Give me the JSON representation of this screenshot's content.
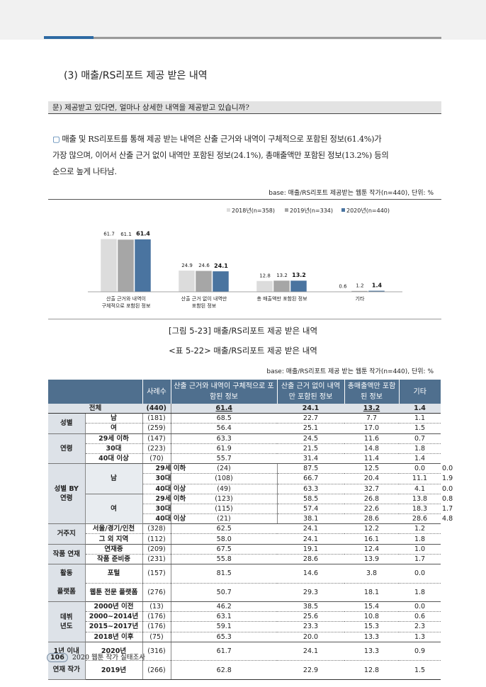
{
  "section_title": "(3) 매출/RS리포트 제공 받은 내역",
  "question": "문) 제공받고 있다면, 얼마나 상세한 내역을 제공받고 있습니까?",
  "summary_bullet": "▢",
  "summary_lines": [
    "매출 및 RS리포트를 통해 제공 받는 내역은 산출 근거와 내역이 구체적으로 포함된 정보(61.4%)가",
    "가장 많으며, 이어서 산출 근거 없이 내역만 포함된 정보(24.1%), 총매출액만 포함된 정보(13.2%) 등의",
    "순으로 높게 나타남."
  ],
  "chart_base": "base: 매출/RS리포트 제공받는 웹툰 작가(n=440), 단위: %",
  "chart_data": {
    "type": "bar",
    "categories": [
      "산출 근거와 내역이\n구체적으로 포함된 정보",
      "산출 근거 없이 내역만\n포함된 정보",
      "총 매출액만 포함된 정보",
      "기타"
    ],
    "series": [
      {
        "name": "2018년(n=358)",
        "values": [
          61.7,
          24.9,
          12.8,
          0.6
        ],
        "color": "#dcdcdc"
      },
      {
        "name": "2019년(n=334)",
        "values": [
          61.1,
          24.6,
          13.2,
          1.2
        ],
        "color": "#a6a6a6"
      },
      {
        "name": "2020년(n=440)",
        "values": [
          61.4,
          24.1,
          13.2,
          1.4
        ],
        "color": "#4a74a0"
      }
    ],
    "ylim": [
      0,
      70
    ],
    "legend": "top-right"
  },
  "figure_caption": "[그림 5-23] 매출/RS리포트 제공 받은 내역",
  "table_caption": "<표 5-22> 매출/RS리포트 제공 받은 내역",
  "table_base": "base: 매출/RS리포트 제공 받는 웹툰 작가(n=440), 단위: %",
  "table": {
    "headers": [
      "사례수",
      "산출 근거와 내역이 구체적으로 포함된 정보",
      "산출 근거 없이 내역만 포함된 정보",
      "총매출액만 포함된 정보",
      "기타"
    ],
    "total": {
      "label": "전체",
      "n": "(440)",
      "v": [
        "61.4",
        "24.1",
        "13.2",
        "1.4"
      ]
    },
    "groups": {
      "gender": "성별",
      "age": "연령",
      "gender_age_1": "성별 BY",
      "gender_age_2": "연령",
      "male": "남",
      "female": "여",
      "residence": "거주지",
      "serial": "작품 연재",
      "platform_1": "활동",
      "platform_2": "플랫폼",
      "debut_1": "데뷔",
      "debut_2": "년도",
      "within1_1": "1년 이내",
      "within1_2": "연재 작가"
    },
    "rows": [
      {
        "label": "남",
        "n": "(181)",
        "v": [
          "68.5",
          "22.7",
          "7.7",
          "1.1"
        ]
      },
      {
        "label": "여",
        "n": "(259)",
        "v": [
          "56.4",
          "25.1",
          "17.0",
          "1.5"
        ]
      },
      {
        "label": "29세 이하",
        "n": "(147)",
        "v": [
          "63.3",
          "24.5",
          "11.6",
          "0.7"
        ]
      },
      {
        "label": "30대",
        "n": "(223)",
        "v": [
          "61.9",
          "21.5",
          "14.8",
          "1.8"
        ]
      },
      {
        "label": "40대 이상",
        "n": "(70)",
        "v": [
          "55.7",
          "31.4",
          "11.4",
          "1.4"
        ]
      },
      {
        "label": "29세 이하",
        "n": "(24)",
        "v": [
          "87.5",
          "12.5",
          "0.0",
          "0.0"
        ]
      },
      {
        "label": "30대",
        "n": "(108)",
        "v": [
          "66.7",
          "20.4",
          "11.1",
          "1.9"
        ]
      },
      {
        "label": "40대 이상",
        "n": "(49)",
        "v": [
          "63.3",
          "32.7",
          "4.1",
          "0.0"
        ]
      },
      {
        "label": "29세 이하",
        "n": "(123)",
        "v": [
          "58.5",
          "26.8",
          "13.8",
          "0.8"
        ]
      },
      {
        "label": "30대",
        "n": "(115)",
        "v": [
          "57.4",
          "22.6",
          "18.3",
          "1.7"
        ]
      },
      {
        "label": "40대 이상",
        "n": "(21)",
        "v": [
          "38.1",
          "28.6",
          "28.6",
          "4.8"
        ]
      },
      {
        "label": "서울/경기/인천",
        "n": "(328)",
        "v": [
          "62.5",
          "24.1",
          "12.2",
          "1.2"
        ]
      },
      {
        "label": "그 외 지역",
        "n": "(112)",
        "v": [
          "58.0",
          "24.1",
          "16.1",
          "1.8"
        ]
      },
      {
        "label": "연재중",
        "n": "(209)",
        "v": [
          "67.5",
          "19.1",
          "12.4",
          "1.0"
        ]
      },
      {
        "label": "작품 준비중",
        "n": "(231)",
        "v": [
          "55.8",
          "28.6",
          "13.9",
          "1.7"
        ]
      },
      {
        "label": "포털",
        "n": "(157)",
        "v": [
          "81.5",
          "14.6",
          "3.8",
          "0.0"
        ]
      },
      {
        "label": "웹툰 전문 플랫폼",
        "n": "(276)",
        "v": [
          "50.7",
          "29.3",
          "18.1",
          "1.8"
        ]
      },
      {
        "label": "2000년 이전",
        "n": "(13)",
        "v": [
          "46.2",
          "38.5",
          "15.4",
          "0.0"
        ]
      },
      {
        "label": "2000~2014년",
        "n": "(176)",
        "v": [
          "63.1",
          "25.6",
          "10.8",
          "0.6"
        ]
      },
      {
        "label": "2015~2017년",
        "n": "(176)",
        "v": [
          "59.1",
          "23.3",
          "15.3",
          "2.3"
        ]
      },
      {
        "label": "2018년 이후",
        "n": "(75)",
        "v": [
          "65.3",
          "20.0",
          "13.3",
          "1.3"
        ]
      },
      {
        "label": "2020년",
        "n": "(316)",
        "v": [
          "61.7",
          "24.1",
          "13.3",
          "0.9"
        ]
      },
      {
        "label": "2019년",
        "n": "(266)",
        "v": [
          "62.8",
          "22.9",
          "12.8",
          "1.5"
        ]
      }
    ]
  },
  "footer": {
    "page": "106",
    "text": "2020 웹툰 작가 실태조사"
  }
}
